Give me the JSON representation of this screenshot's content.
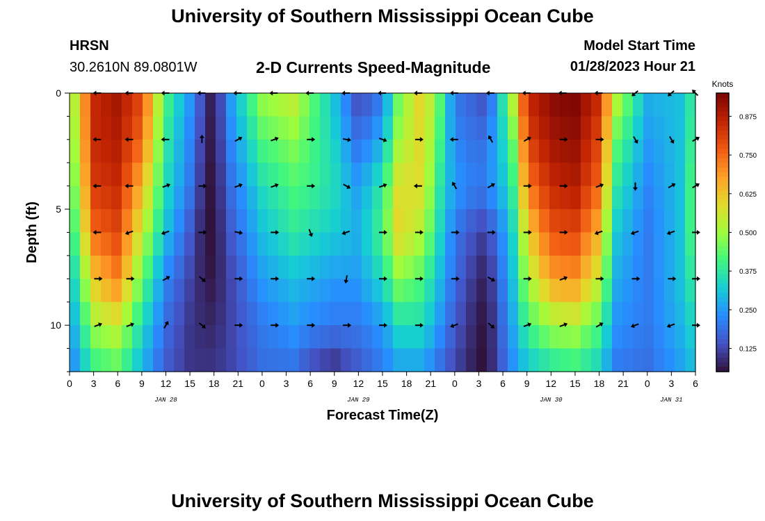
{
  "header": {
    "title": "University of Southern Mississippi Ocean Cube",
    "station": "HRSN",
    "coords": "30.2610N  89.0801W",
    "subtitle": "2-D Currents Speed-Magnitude",
    "model_start_label": "Model Start Time",
    "model_start_value": "01/28/2023 Hour 21"
  },
  "footer": {
    "title": "University of Southern Mississippi Ocean Cube"
  },
  "chart_data": {
    "type": "heatmap",
    "title": "2-D Currents Speed-Magnitude",
    "xlabel": "Forecast Time(Z)",
    "ylabel": "Depth (ft)",
    "x_range_hours": [
      0,
      78
    ],
    "x_tick_labels": [
      "0",
      "3",
      "6",
      "9",
      "12",
      "15",
      "18",
      "21",
      "0",
      "3",
      "6",
      "9",
      "12",
      "15",
      "18",
      "21",
      "0",
      "3",
      "6",
      "9",
      "12",
      "15",
      "18",
      "21",
      "0",
      "3",
      "6"
    ],
    "day_labels": [
      {
        "label": "JAN 28",
        "hour": 12
      },
      {
        "label": "JAN 29",
        "hour": 36
      },
      {
        "label": "JAN 30",
        "hour": 60
      },
      {
        "label": "JAN 31",
        "hour": 75
      }
    ],
    "y_range_ft": [
      0,
      12
    ],
    "y_ticks": [
      0,
      5,
      10
    ],
    "colorbar": {
      "label": "Knots",
      "min": 0.05,
      "max": 0.95,
      "ticks": [
        "0.125",
        "0.250",
        "0.375",
        "0.500",
        "0.625",
        "0.750",
        "0.875"
      ],
      "tick_values": [
        0.125,
        0.25,
        0.375,
        0.5,
        0.625,
        0.75,
        0.875
      ]
    },
    "profile_hours": [
      0,
      3,
      6,
      9,
      12,
      15,
      17,
      18,
      20,
      24,
      28,
      30,
      33,
      36,
      39,
      41,
      44,
      46,
      48,
      51,
      52,
      55,
      57,
      60,
      63,
      66,
      68,
      72,
      76,
      78
    ],
    "speed_profiles_knots": [
      [
        0.45,
        0.42,
        0.38,
        0.33,
        0.28,
        0.24,
        0.2
      ],
      [
        0.85,
        0.85,
        0.82,
        0.75,
        0.62,
        0.5,
        0.38
      ],
      [
        0.9,
        0.88,
        0.85,
        0.8,
        0.72,
        0.55,
        0.42
      ],
      [
        0.8,
        0.75,
        0.65,
        0.55,
        0.45,
        0.35,
        0.28
      ],
      [
        0.42,
        0.38,
        0.35,
        0.3,
        0.22,
        0.18,
        0.15
      ],
      [
        0.25,
        0.22,
        0.2,
        0.15,
        0.12,
        0.1,
        0.1
      ],
      [
        0.1,
        0.08,
        0.06,
        0.05,
        0.06,
        0.08,
        0.1
      ],
      [
        0.05,
        0.05,
        0.05,
        0.05,
        0.06,
        0.08,
        0.1
      ],
      [
        0.25,
        0.22,
        0.18,
        0.15,
        0.12,
        0.12,
        0.12
      ],
      [
        0.5,
        0.42,
        0.35,
        0.3,
        0.25,
        0.2,
        0.18
      ],
      [
        0.55,
        0.48,
        0.42,
        0.38,
        0.3,
        0.25,
        0.18
      ],
      [
        0.45,
        0.42,
        0.4,
        0.35,
        0.28,
        0.22,
        0.12
      ],
      [
        0.3,
        0.33,
        0.35,
        0.32,
        0.25,
        0.2,
        0.08
      ],
      [
        0.12,
        0.18,
        0.25,
        0.28,
        0.25,
        0.2,
        0.15
      ],
      [
        0.2,
        0.28,
        0.38,
        0.42,
        0.35,
        0.25,
        0.2
      ],
      [
        0.45,
        0.5,
        0.58,
        0.6,
        0.48,
        0.35,
        0.25
      ],
      [
        0.62,
        0.6,
        0.58,
        0.52,
        0.42,
        0.35,
        0.25
      ],
      [
        0.45,
        0.42,
        0.38,
        0.35,
        0.3,
        0.25,
        0.18
      ],
      [
        0.2,
        0.22,
        0.25,
        0.2,
        0.18,
        0.15,
        0.12
      ],
      [
        0.15,
        0.18,
        0.2,
        0.12,
        0.08,
        0.06,
        0.05
      ],
      [
        0.12,
        0.2,
        0.22,
        0.12,
        0.07,
        0.05,
        0.05
      ],
      [
        0.5,
        0.4,
        0.35,
        0.3,
        0.28,
        0.25,
        0.22
      ],
      [
        0.85,
        0.8,
        0.72,
        0.6,
        0.5,
        0.4,
        0.3
      ],
      [
        0.93,
        0.9,
        0.85,
        0.78,
        0.68,
        0.5,
        0.35
      ],
      [
        0.95,
        0.92,
        0.88,
        0.8,
        0.7,
        0.52,
        0.38
      ],
      [
        0.85,
        0.8,
        0.75,
        0.65,
        0.55,
        0.42,
        0.32
      ],
      [
        0.55,
        0.45,
        0.38,
        0.32,
        0.28,
        0.24,
        0.2
      ],
      [
        0.28,
        0.25,
        0.22,
        0.2,
        0.2,
        0.2,
        0.18
      ],
      [
        0.3,
        0.3,
        0.3,
        0.3,
        0.3,
        0.28,
        0.25
      ],
      [
        0.4,
        0.42,
        0.45,
        0.45,
        0.4,
        0.35,
        0.3
      ]
    ],
    "profile_depths_ft": [
      0,
      2,
      4,
      6,
      8,
      10,
      12
    ],
    "arrow_hours": [
      3.5,
      7.5,
      12,
      16.5,
      21,
      25.5,
      30,
      34.5,
      39,
      43.5,
      48,
      52.5,
      57,
      61.5,
      66,
      70.5,
      75,
      78
    ],
    "arrow_depths_ft": [
      0,
      2,
      4,
      6,
      8,
      10
    ],
    "arrow_directions_deg": [
      [
        180,
        180,
        180,
        180,
        180,
        180,
        180,
        180,
        180,
        180,
        180,
        180,
        180,
        180,
        180,
        220,
        220,
        135
      ],
      [
        180,
        180,
        180,
        90,
        30,
        20,
        0,
        -10,
        -20,
        0,
        180,
        120,
        30,
        0,
        0,
        -60,
        -60,
        30
      ],
      [
        180,
        180,
        20,
        0,
        20,
        20,
        0,
        -30,
        20,
        180,
        120,
        30,
        0,
        0,
        20,
        -90,
        30,
        30
      ],
      [
        180,
        200,
        200,
        0,
        -10,
        0,
        -70,
        200,
        0,
        0,
        0,
        0,
        0,
        0,
        200,
        200,
        200,
        0
      ],
      [
        0,
        0,
        30,
        -40,
        0,
        0,
        0,
        -100,
        0,
        0,
        0,
        -30,
        0,
        20,
        0,
        0,
        0,
        0
      ],
      [
        20,
        20,
        60,
        -40,
        0,
        0,
        0,
        0,
        0,
        0,
        200,
        -40,
        20,
        20,
        30,
        200,
        200,
        0
      ]
    ]
  }
}
